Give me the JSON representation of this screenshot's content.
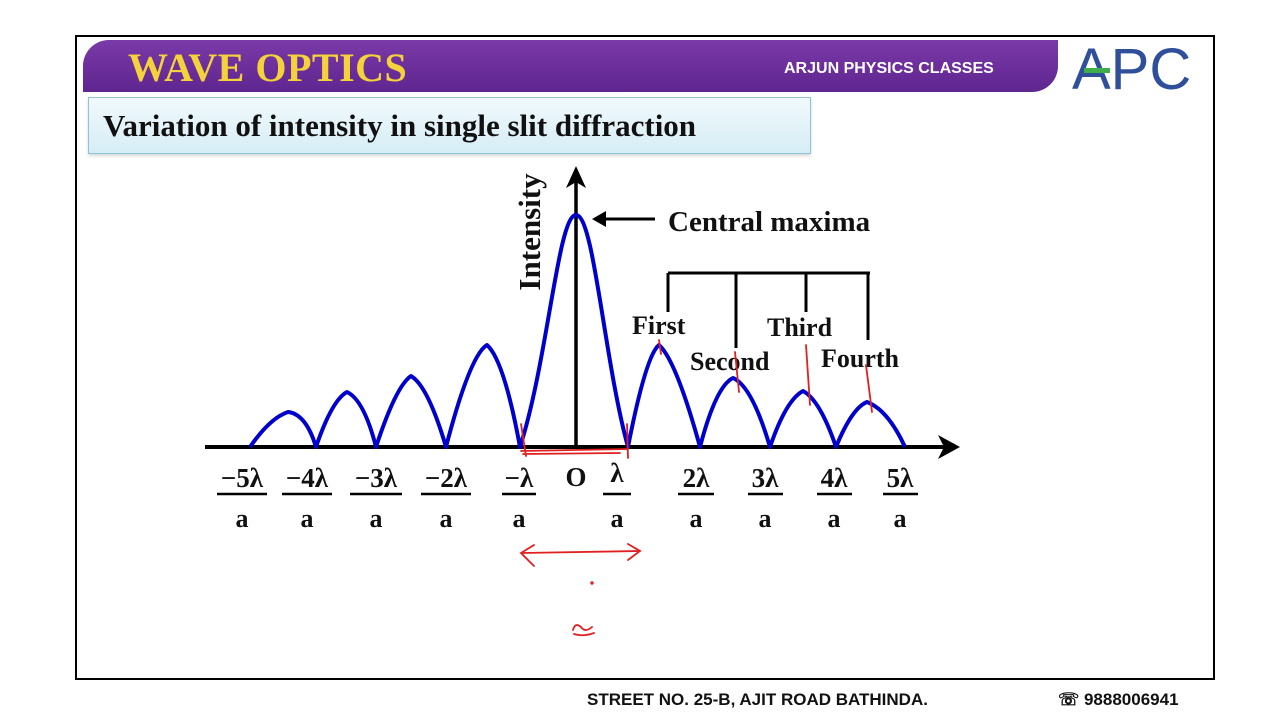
{
  "header": {
    "title": "WAVE OPTICS",
    "brand": "ARJUN PHYSICS CLASSES",
    "logo_text": "APC"
  },
  "slide": {
    "subtitle": "Variation of intensity in single slit diffraction"
  },
  "diagram": {
    "y_axis_label": "Intensity",
    "origin_label": "O",
    "central_label": "Central maxima",
    "secondary_labels": [
      "First",
      "Second",
      "Third",
      "Fourth"
    ],
    "tick_numerators": [
      "−5λ",
      "−4λ",
      "−3λ",
      "−2λ",
      "−λ",
      "λ",
      "2λ",
      "3λ",
      "4λ",
      "5λ"
    ],
    "tick_denominator": "a"
  },
  "footer": {
    "address": "STREET NO. 25-B, AJIT ROAD BATHINDA.",
    "phone": "☏ 9888006941"
  },
  "colors": {
    "banner": "#6a2d99",
    "title": "#f3d23a",
    "curve": "#0000cc",
    "annotation": "#e02020"
  }
}
